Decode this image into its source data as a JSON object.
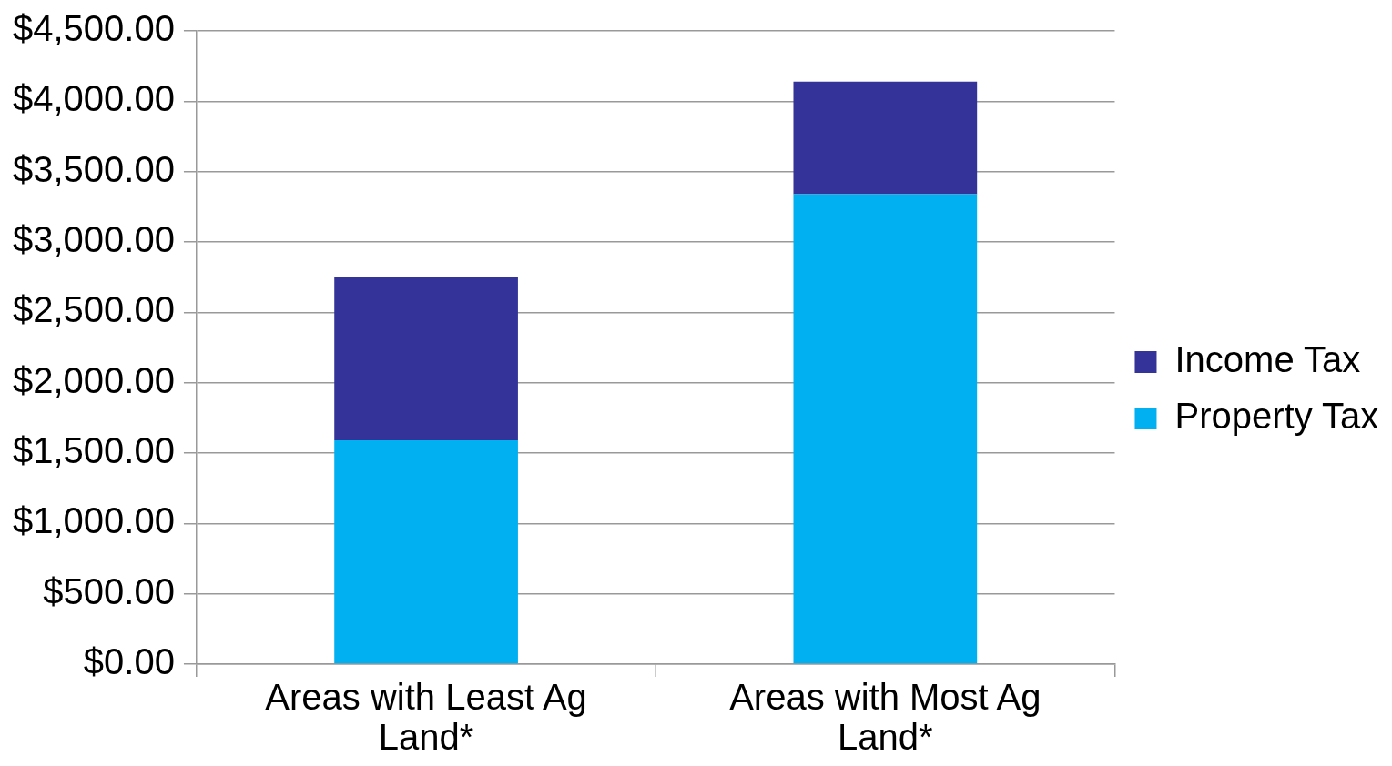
{
  "chart_data": {
    "type": "bar",
    "stacked": true,
    "categories": [
      "Areas with Least Ag Land*",
      "Areas with Most Ag Land*"
    ],
    "series": [
      {
        "name": "Property Tax",
        "color": "#00b0f0",
        "values": [
          1590,
          3340
        ]
      },
      {
        "name": "Income Tax",
        "color": "#333399",
        "values": [
          1160,
          800
        ]
      }
    ],
    "ylim": [
      0,
      4500
    ],
    "yticks": [
      {
        "value": 0,
        "label": "$0.00"
      },
      {
        "value": 500,
        "label": "$500.00"
      },
      {
        "value": 1000,
        "label": "$1,000.00"
      },
      {
        "value": 1500,
        "label": "$1,500.00"
      },
      {
        "value": 2000,
        "label": "$2,000.00"
      },
      {
        "value": 2500,
        "label": "$2,500.00"
      },
      {
        "value": 3000,
        "label": "$3,000.00"
      },
      {
        "value": 3500,
        "label": "$3,500.00"
      },
      {
        "value": 4000,
        "label": "$4,000.00"
      },
      {
        "value": 4500,
        "label": "$4,500.00"
      }
    ],
    "grid": "y",
    "legend": "right"
  }
}
